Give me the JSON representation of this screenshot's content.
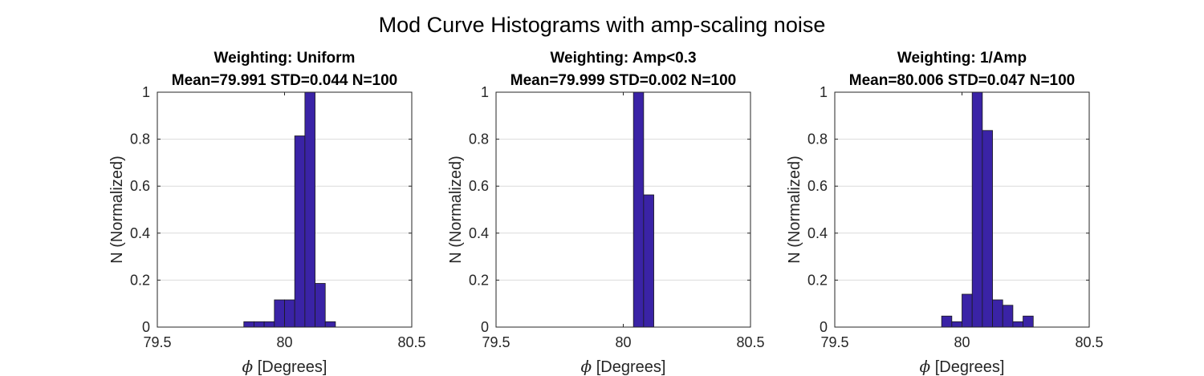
{
  "figure": {
    "title": "Mod Curve Histograms with amp-scaling noise"
  },
  "chart_data": [
    {
      "type": "bar",
      "title": "Weighting: Uniform",
      "subtitle": "Mean=79.991 STD=0.044 N=100",
      "xlabel_symbol": "ϕ",
      "xlabel": "[Degrees]",
      "ylabel": "N (Normalized)",
      "xlim": [
        79.5,
        80.5
      ],
      "ylim": [
        0,
        1
      ],
      "xticks": [
        79.5,
        80,
        80.5
      ],
      "xtick_labels": [
        "79.5",
        "80",
        "80.5"
      ],
      "yticks": [
        0,
        0.2,
        0.4,
        0.6,
        0.8,
        1
      ],
      "ytick_labels": [
        "0",
        "0.2",
        "0.4",
        "0.6",
        "0.8",
        "1"
      ],
      "grid": "y",
      "bar_color": "#3a23a6",
      "bin_width": 0.04,
      "bins_start": 79.6,
      "values": [
        0,
        0,
        0,
        0,
        0,
        0,
        0.023,
        0.023,
        0.023,
        0.116,
        0.116,
        0.814,
        1,
        0.186,
        0.023,
        0,
        0,
        0,
        0,
        0,
        0,
        0
      ]
    },
    {
      "type": "bar",
      "title": "Weighting: Amp<0.3",
      "subtitle": "Mean=79.999 STD=0.002 N=100",
      "xlabel_symbol": "ϕ",
      "xlabel": "[Degrees]",
      "ylabel": "N (Normalized)",
      "xlim": [
        79.5,
        80.5
      ],
      "ylim": [
        0,
        1
      ],
      "xticks": [
        79.5,
        80,
        80.5
      ],
      "xtick_labels": [
        "79.5",
        "80",
        "80.5"
      ],
      "yticks": [
        0,
        0.2,
        0.4,
        0.6,
        0.8,
        1
      ],
      "ytick_labels": [
        "0",
        "0.2",
        "0.4",
        "0.6",
        "0.8",
        "1"
      ],
      "grid": "y",
      "bar_color": "#3a23a6",
      "bin_width": 0.04,
      "bins_start": 79.6,
      "values": [
        0,
        0,
        0,
        0,
        0,
        0,
        0,
        0,
        0,
        0,
        0,
        1,
        0.563,
        0,
        0,
        0,
        0,
        0,
        0,
        0,
        0,
        0
      ]
    },
    {
      "type": "bar",
      "title": "Weighting: 1/Amp",
      "subtitle": "Mean=80.006 STD=0.047 N=100",
      "xlabel_symbol": "ϕ",
      "xlabel": "[Degrees]",
      "ylabel": "N (Normalized)",
      "xlim": [
        79.5,
        80.5
      ],
      "ylim": [
        0,
        1
      ],
      "xticks": [
        79.5,
        80,
        80.5
      ],
      "xtick_labels": [
        "79.5",
        "80",
        "80.5"
      ],
      "yticks": [
        0,
        0.2,
        0.4,
        0.6,
        0.8,
        1
      ],
      "ytick_labels": [
        "0",
        "0.2",
        "0.4",
        "0.6",
        "0.8",
        "1"
      ],
      "grid": "y",
      "bar_color": "#3a23a6",
      "bin_width": 0.04,
      "bins_start": 79.6,
      "values": [
        0,
        0,
        0,
        0,
        0,
        0,
        0,
        0,
        0.047,
        0.023,
        0.14,
        1,
        0.837,
        0.116,
        0.093,
        0.023,
        0.047,
        0,
        0,
        0,
        0,
        0
      ]
    }
  ]
}
